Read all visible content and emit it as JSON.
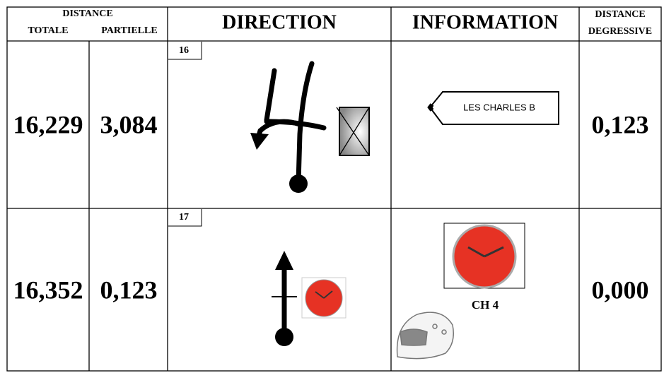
{
  "header": {
    "distance": "DISTANCE",
    "totale": "TOTALE",
    "partielle": "PARTIELLE",
    "direction": "DIRECTION",
    "information": "INFORMATION",
    "degressive": [
      "DISTANCE",
      "DEGRESSIVE"
    ]
  },
  "rows": [
    {
      "number": "16",
      "totale": "16,229",
      "partielle": "3,084",
      "sign": "LES CHARLES B",
      "degressive": "0,123"
    },
    {
      "number": "17",
      "totale": "16,352",
      "partielle": "0,123",
      "info": "CH 4",
      "degressive": "0,000"
    }
  ]
}
